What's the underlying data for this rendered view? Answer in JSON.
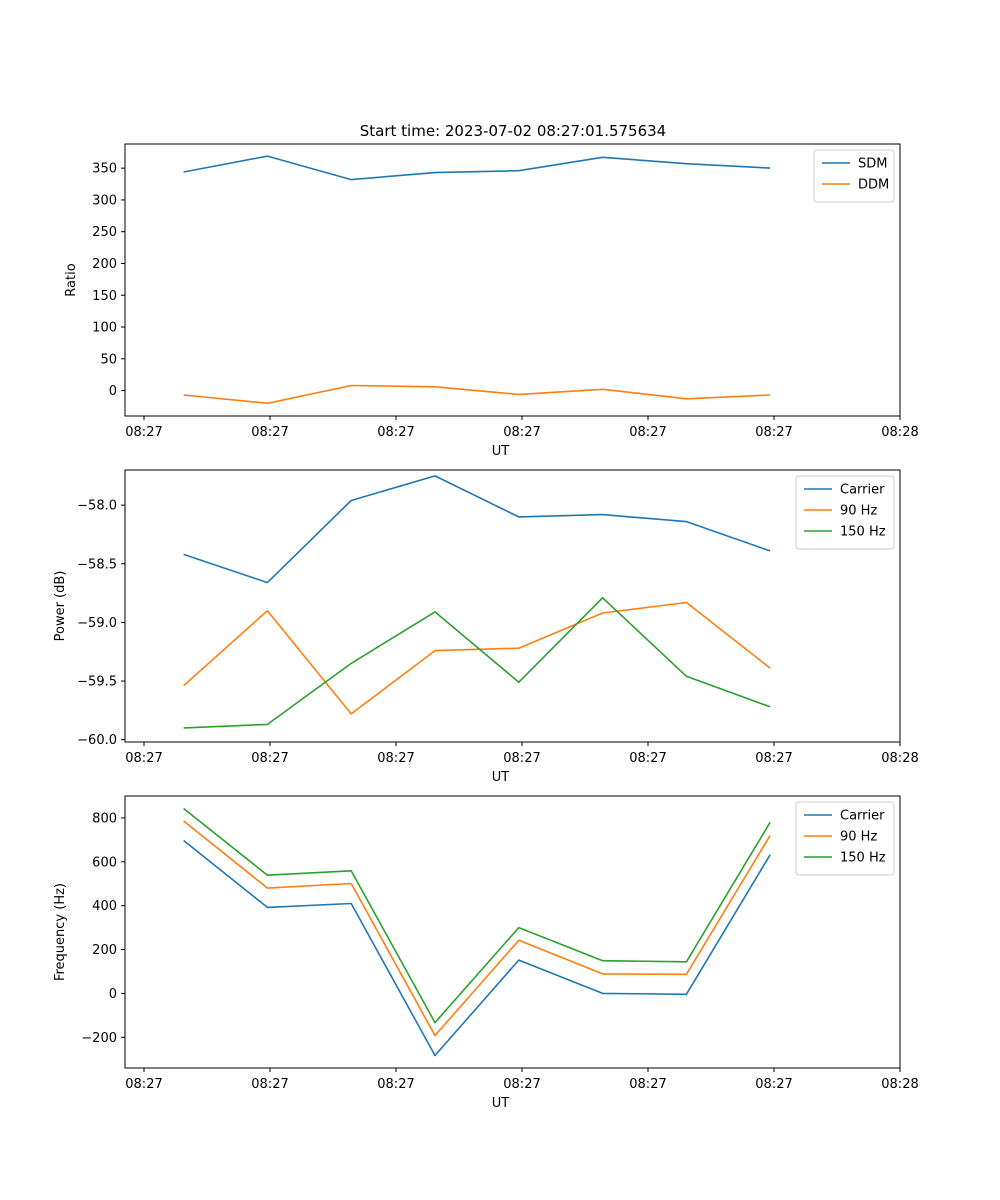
{
  "figure_title": "Start time: 2023-07-02 08:27:01.575634",
  "chart_data": [
    {
      "type": "line",
      "title": "Start time: 2023-07-02 08:27:01.575634",
      "xlabel": "UT",
      "ylabel": "Ratio",
      "x_ticks": [
        "08:27",
        "08:27",
        "08:27",
        "08:27",
        "08:27",
        "08:27",
        "08:28"
      ],
      "y_ticks": [
        "0",
        "50",
        "100",
        "150",
        "200",
        "250",
        "300",
        "350"
      ],
      "xlim": [
        -0.35,
        8.9
      ],
      "ylim": [
        -40,
        388
      ],
      "legend_position": "top-right",
      "x": [
        0.35,
        1.35,
        2.35,
        3.35,
        4.35,
        5.35,
        6.35,
        7.35
      ],
      "series": [
        {
          "name": "SDM",
          "color": "#1f77b4",
          "values": [
            344,
            369,
            332,
            343,
            346,
            367,
            357,
            350
          ]
        },
        {
          "name": "DDM",
          "color": "#ff7f0e",
          "values": [
            -7,
            -20,
            8,
            6,
            -6,
            2,
            -13,
            -7
          ]
        }
      ]
    },
    {
      "type": "line",
      "title": "",
      "xlabel": "UT",
      "ylabel": "Power (dB)",
      "x_ticks": [
        "08:27",
        "08:27",
        "08:27",
        "08:27",
        "08:27",
        "08:27",
        "08:28"
      ],
      "y_ticks": [
        "−60.0",
        "−59.5",
        "−59.0",
        "−58.5",
        "−58.0"
      ],
      "xlim": [
        -0.35,
        8.9
      ],
      "ylim": [
        -60.02,
        -57.7
      ],
      "legend_position": "top-right",
      "x": [
        0.35,
        1.35,
        2.35,
        3.35,
        4.35,
        5.35,
        6.35,
        7.35
      ],
      "series": [
        {
          "name": "Carrier",
          "color": "#1f77b4",
          "values": [
            -58.42,
            -58.66,
            -57.96,
            -57.75,
            -58.1,
            -58.08,
            -58.14,
            -58.39
          ]
        },
        {
          "name": "90 Hz",
          "color": "#ff7f0e",
          "values": [
            -59.54,
            -58.9,
            -59.78,
            -59.24,
            -59.22,
            -58.92,
            -58.83,
            -59.39
          ]
        },
        {
          "name": "150 Hz",
          "color": "#2ca02c",
          "values": [
            -59.9,
            -59.87,
            -59.35,
            -58.91,
            -59.51,
            -58.79,
            -59.46,
            -59.72
          ]
        }
      ]
    },
    {
      "type": "line",
      "title": "",
      "xlabel": "UT",
      "ylabel": "Frequency (Hz)",
      "x_ticks": [
        "08:27",
        "08:27",
        "08:27",
        "08:27",
        "08:27",
        "08:27",
        "08:28"
      ],
      "y_ticks": [
        "−200",
        "0",
        "200",
        "400",
        "600",
        "800"
      ],
      "xlim": [
        -0.35,
        8.9
      ],
      "ylim": [
        -340,
        900
      ],
      "legend_position": "top-right",
      "x": [
        0.35,
        1.35,
        2.35,
        3.35,
        4.35,
        5.35,
        6.35,
        7.35
      ],
      "series": [
        {
          "name": "Carrier",
          "color": "#1f77b4",
          "values": [
            697,
            392,
            410,
            -283,
            152,
            0,
            -4,
            632
          ]
        },
        {
          "name": "90 Hz",
          "color": "#ff7f0e",
          "values": [
            786,
            480,
            501,
            -192,
            242,
            89,
            87,
            720
          ]
        },
        {
          "name": "150 Hz",
          "color": "#2ca02c",
          "values": [
            843,
            539,
            559,
            -133,
            300,
            149,
            144,
            780
          ]
        }
      ]
    }
  ]
}
